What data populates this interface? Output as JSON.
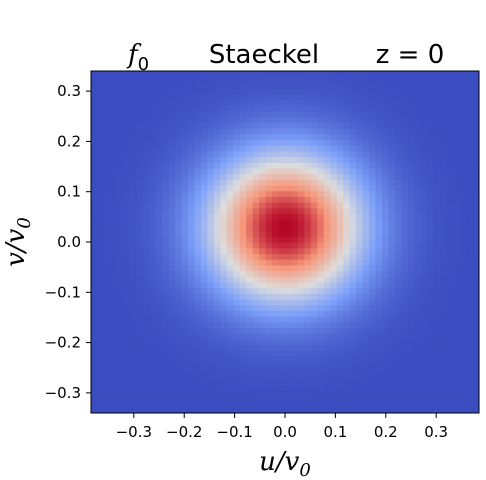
{
  "chart_data": {
    "type": "heatmap",
    "title_parts": {
      "left": "f",
      "left_sub": "0",
      "center": "Staeckel",
      "right": "z = 0"
    },
    "xlabel": {
      "main": "u/v",
      "sub": "0"
    },
    "ylabel": {
      "main": "v/v",
      "sub": "0"
    },
    "xlim": [
      -0.385,
      0.385
    ],
    "ylim": [
      -0.34,
      0.34
    ],
    "xticks": [
      -0.3,
      -0.2,
      -0.1,
      0.0,
      0.1,
      0.2,
      0.3
    ],
    "xtick_labels": [
      "−0.3",
      "−0.2",
      "−0.1",
      "0.0",
      "0.1",
      "0.2",
      "0.3"
    ],
    "yticks": [
      0.3,
      0.2,
      0.1,
      0.0,
      -0.1,
      -0.2,
      -0.3
    ],
    "ytick_labels": [
      "0.3",
      "0.2",
      "0.1",
      "0.0",
      "−0.1",
      "−0.2",
      "−0.3"
    ],
    "colormap": "coolwarm",
    "colormap_low": "#3b4cc0",
    "colormap_mid": "#dddddd",
    "colormap_high": "#b40426",
    "distribution": {
      "peak_u": 0.0,
      "peak_v": 0.03,
      "sigma_u": 0.11,
      "sigma_v": 0.105
    }
  }
}
